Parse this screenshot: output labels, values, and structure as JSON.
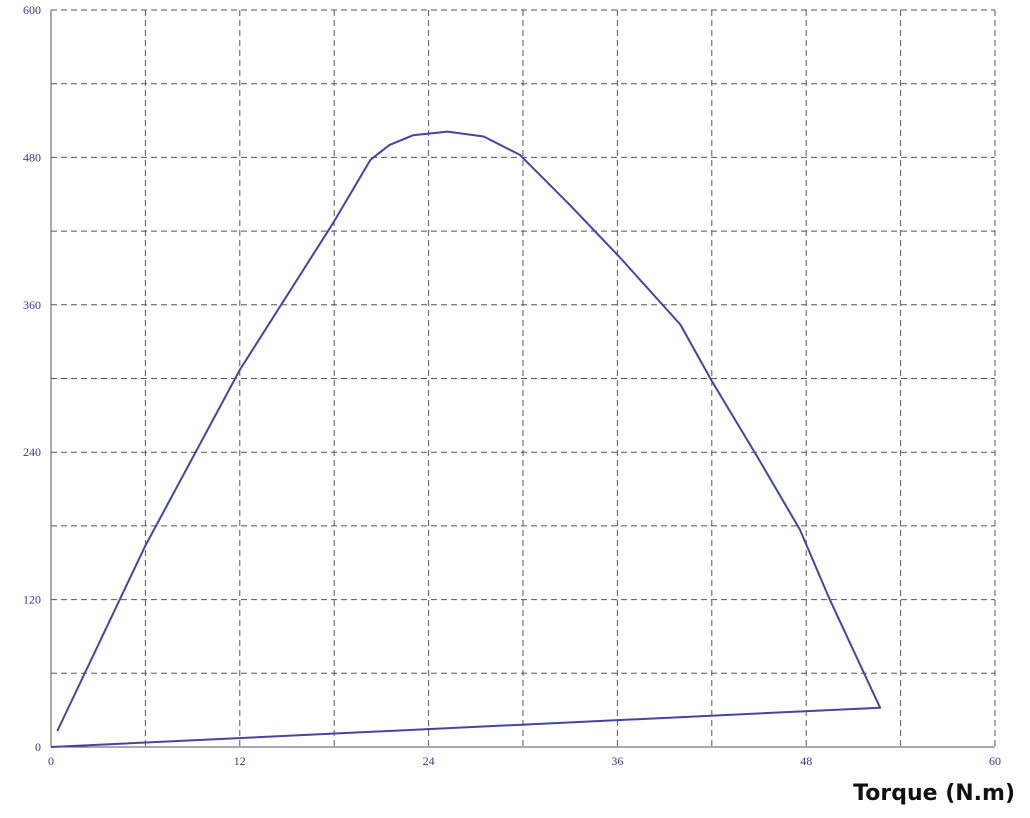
{
  "chart_data": {
    "type": "line",
    "x_label": "Torque (N.m)",
    "xlim": [
      0,
      60
    ],
    "ylim": [
      0,
      600
    ],
    "xticks": [
      0,
      12,
      24,
      36,
      48,
      60
    ],
    "yticks": [
      0,
      120,
      240,
      360,
      480,
      600
    ],
    "minor_xticks": [
      6,
      18,
      30,
      42,
      54
    ],
    "minor_yticks": [
      60,
      180,
      300,
      420,
      540
    ],
    "grid": true,
    "series": [
      {
        "color": "#4444a4",
        "x": [
          0.4,
          6,
          12,
          18,
          20.3,
          21.5,
          23,
          25.2,
          27.5,
          29.8,
          33,
          36.2,
          40,
          42,
          45,
          47.6,
          49.5,
          52.7,
          0
        ],
        "values": [
          13,
          164,
          307,
          428,
          478,
          490,
          498,
          501,
          497,
          482,
          441,
          398,
          344,
          298,
          234,
          177,
          120,
          32,
          0
        ]
      }
    ]
  }
}
